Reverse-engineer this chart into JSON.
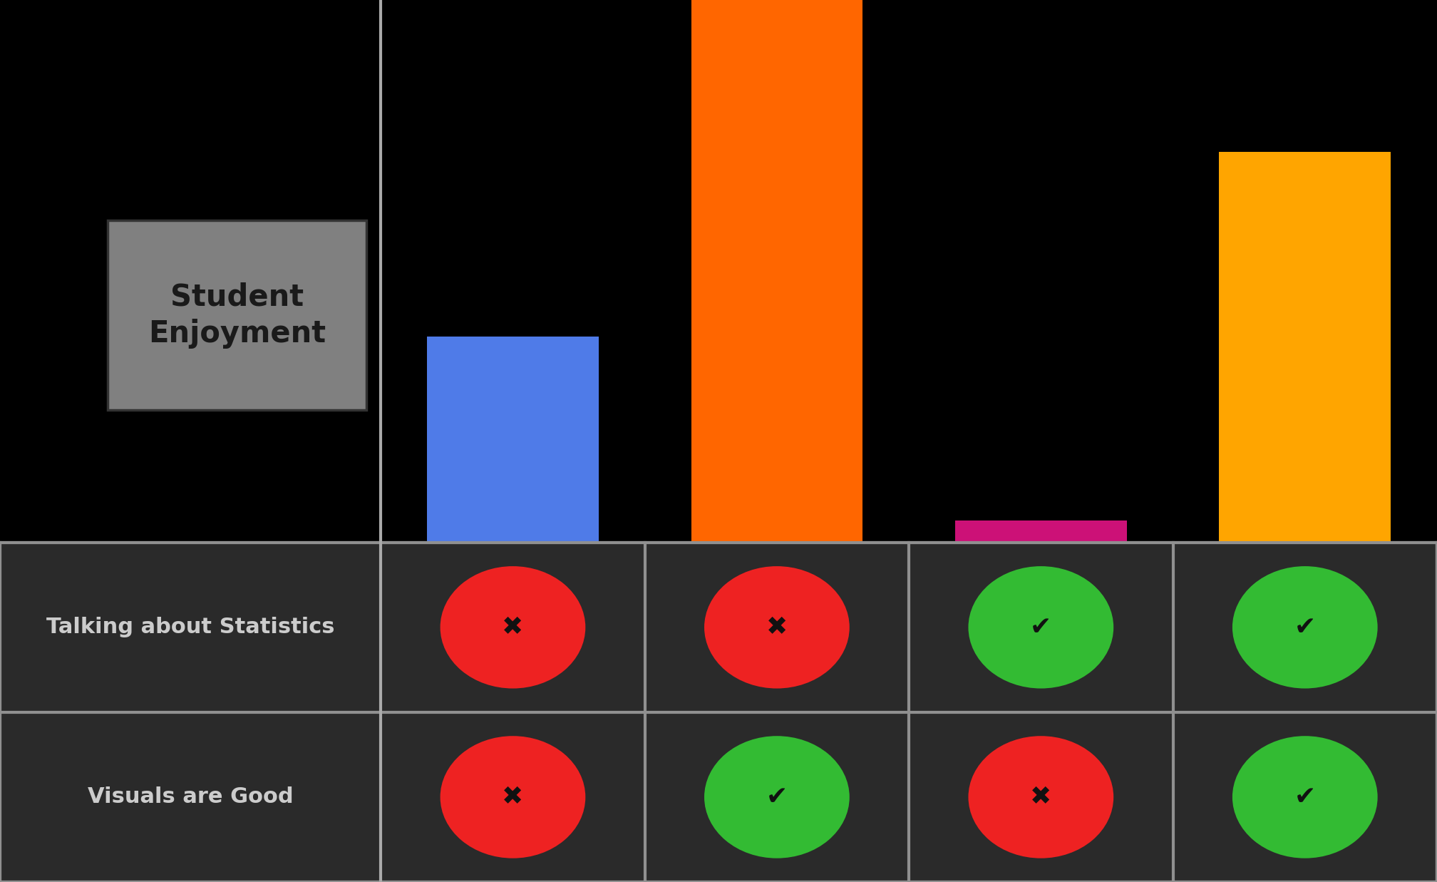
{
  "bar_values": [
    0.38,
    1.0,
    0.04,
    0.72
  ],
  "bar_colors": [
    "#4F7BE8",
    "#FF6600",
    "#CC1177",
    "#FFA500"
  ],
  "background_color": "#000000",
  "table_bg_color": "#2A2A2A",
  "table_border_color": "#909090",
  "label_text": "Student\nEnjoyment",
  "label_bg_color": "#808080",
  "label_text_color": "#1a1a1a",
  "row1_label": "Talking about Statistics",
  "row2_label": "Visuals are Good",
  "row_label_color": "#cccccc",
  "row1_values": [
    false,
    false,
    true,
    true
  ],
  "row2_values": [
    false,
    true,
    false,
    true
  ],
  "check_color": "#33BB33",
  "cross_color": "#EE2222",
  "icon_symbol_color": "#111111",
  "n_bars": 4,
  "axis_line_color": "#aaaaaa",
  "fig_width": 20.16,
  "fig_height": 12.37,
  "dpi": 100
}
